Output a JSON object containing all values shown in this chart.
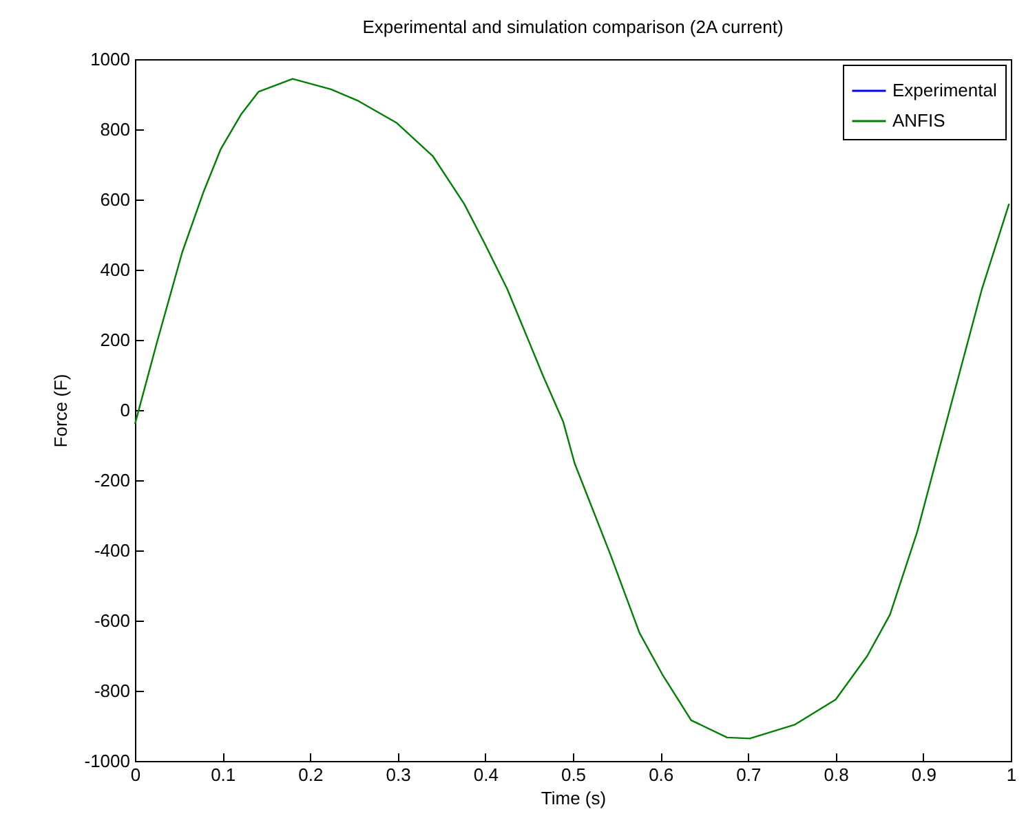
{
  "chart_data": {
    "type": "line",
    "title": "Experimental and simulation comparison (2A current)",
    "xlabel": "Time (s)",
    "ylabel": "Force (F)",
    "x": [
      0,
      0.026,
      0.054,
      0.078,
      0.098,
      0.121,
      0.141,
      0.18,
      0.224,
      0.255,
      0.299,
      0.34,
      0.376,
      0.399,
      0.425,
      0.451,
      0.466,
      0.489,
      0.502,
      0.543,
      0.576,
      0.602,
      0.635,
      0.676,
      0.702,
      0.753,
      0.8,
      0.836,
      0.862,
      0.893,
      0.918,
      0.946,
      0.967,
      0.998
    ],
    "series": [
      {
        "name": "Experimental",
        "color": "#0000ff",
        "values": [
          null,
          null,
          null,
          null,
          null,
          null,
          null,
          null,
          null,
          null,
          null,
          null,
          null,
          null,
          null,
          null,
          null,
          null,
          null,
          null,
          null,
          null,
          null,
          null,
          null,
          null,
          null,
          null,
          null,
          null,
          null,
          null,
          null,
          null
        ]
      },
      {
        "name": "ANFIS",
        "color": "#008000",
        "values": [
          -40,
          201,
          450,
          620,
          744,
          842,
          907,
          944,
          914,
          881,
          818,
          724,
          587,
          476,
          345,
          188,
          97,
          -34,
          -152,
          -413,
          -635,
          -753,
          -884,
          -933,
          -936,
          -897,
          -825,
          -701,
          -583,
          -348,
          -113,
          149,
          345,
          588
        ]
      }
    ],
    "xlim": [
      0,
      1
    ],
    "ylim": [
      -1000,
      1000
    ],
    "xticks": [
      0,
      0.1,
      0.2,
      0.3,
      0.4,
      0.5,
      0.6,
      0.7,
      0.8,
      0.9,
      1
    ],
    "yticks": [
      -1000,
      -800,
      -600,
      -400,
      -200,
      0,
      200,
      400,
      600,
      800,
      1000
    ],
    "grid": false,
    "legend": "top right",
    "marker": "none",
    "line_style": "solid"
  }
}
